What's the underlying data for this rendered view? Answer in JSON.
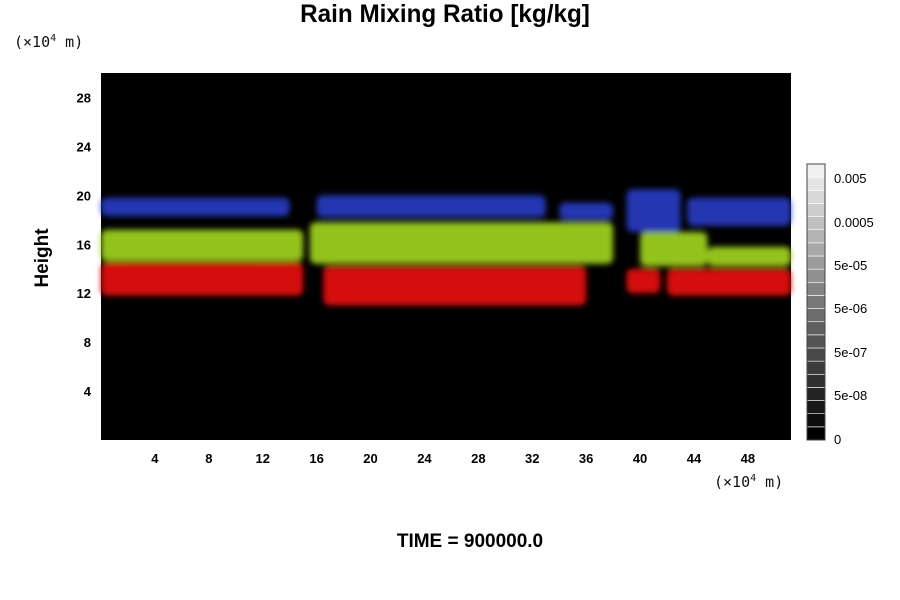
{
  "chart_data": {
    "type": "heatmap",
    "title": "Rain Mixing Ratio [kg/kg]",
    "ylabel": "Height",
    "y_unit": {
      "prefix": "(×10",
      "exp": "4",
      "suffix": " m)"
    },
    "x_unit": {
      "prefix": "(×10",
      "exp": "4",
      "suffix": " m)"
    },
    "x_ticks": [
      "4",
      "8",
      "12",
      "16",
      "20",
      "24",
      "28",
      "32",
      "36",
      "40",
      "44",
      "48"
    ],
    "y_ticks": [
      "4",
      "8",
      "12",
      "16",
      "20",
      "24",
      "28"
    ],
    "xlim": [
      0,
      51.2
    ],
    "ylim": [
      0,
      30
    ],
    "colorbar_labels": [
      "0.005",
      "0.0005",
      "5e-05",
      "5e-06",
      "5e-07",
      "5e-08",
      "0"
    ],
    "background_color": "#000000",
    "band_colors": {
      "top": "#2a3fd0",
      "middle": "#9bcc1e",
      "bottom": "#e00d0d"
    },
    "bands": [
      {
        "layer": "top",
        "segments": [
          [
            0,
            14,
            18.3,
            19.8
          ],
          [
            16,
            33,
            18.2,
            20.0
          ],
          [
            34,
            38,
            18.0,
            19.4
          ],
          [
            39,
            43,
            17.0,
            20.5
          ],
          [
            43.5,
            51.2,
            17.5,
            19.8
          ]
        ]
      },
      {
        "layer": "middle",
        "segments": [
          [
            0,
            15,
            14.6,
            17.2
          ],
          [
            15.5,
            38,
            14.4,
            17.8
          ],
          [
            40,
            45,
            14.2,
            17.0
          ],
          [
            45,
            51.2,
            14.2,
            15.8
          ]
        ]
      },
      {
        "layer": "bottom",
        "segments": [
          [
            0,
            15,
            11.8,
            14.5
          ],
          [
            16.5,
            36,
            11.0,
            14.2
          ],
          [
            39,
            41.5,
            12.0,
            14.0
          ],
          [
            42,
            51.2,
            11.8,
            14.0
          ]
        ]
      }
    ]
  },
  "footer": {
    "time_label": "TIME = 900000.0"
  }
}
